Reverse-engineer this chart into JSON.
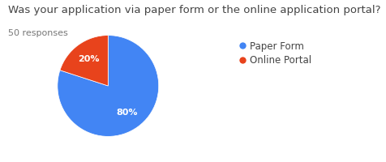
{
  "title": "Was your application via paper form or the online application portal?",
  "subtitle": "50 responses",
  "slices": [
    80,
    20
  ],
  "labels": [
    "Paper Form",
    "Online Portal"
  ],
  "colors": [
    "#4285F4",
    "#E8431C"
  ],
  "startangle": 90,
  "title_fontsize": 9.5,
  "subtitle_fontsize": 8,
  "legend_fontsize": 8.5,
  "autopct_fontsize": 8,
  "text_color": "#ffffff",
  "title_color": "#444444",
  "subtitle_color": "#777777"
}
